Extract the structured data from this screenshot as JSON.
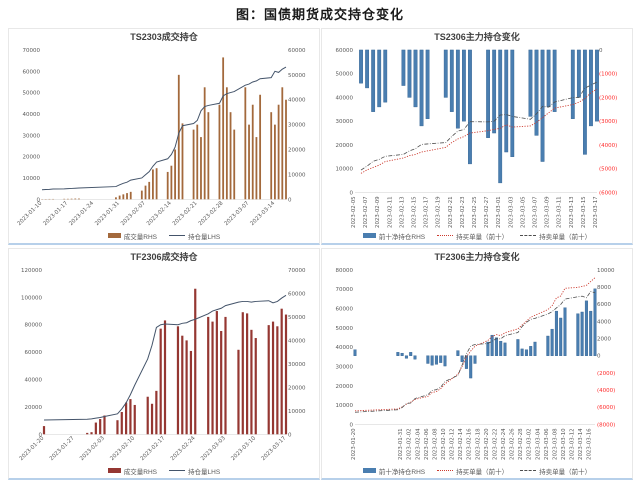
{
  "page_title": "图：国债期货成交持仓变化",
  "colors": {
    "oi_line": "#44546A",
    "ts_volume_bar": "#A3693C",
    "tf_volume_bar": "#953732",
    "net_position_bar": "#4A7EB0",
    "net_position_bar_border": "#2F5F8F",
    "buy_line": "#CC3A2E",
    "sell_line": "#4D4D4D",
    "negative_tick": "#FF2A2A",
    "panel_border_bottom": "#B7D0EA"
  },
  "chart_data": [
    {
      "type": "bar",
      "title": "TS2303成交持仓",
      "x_range": [
        "2023-01-10",
        "2023-03-17"
      ],
      "left_axis": {
        "min": 0,
        "max": 70000,
        "step": 10000
      },
      "right_axis": {
        "min": 0,
        "max": 60000,
        "step": 10000
      },
      "x_tick_labels": [
        "2023-01-10",
        "2023-01-17",
        "2023-01-24",
        "2023-01-31",
        "2023-02-07",
        "2023-02-14",
        "2023-02-21",
        "2023-02-28",
        "2023-03-07",
        "2023-03-14"
      ],
      "dates": [
        "2023-01-10",
        "2023-01-11",
        "2023-01-12",
        "2023-01-13",
        "2023-01-16",
        "2023-01-17",
        "2023-01-18",
        "2023-01-19",
        "2023-01-20",
        "2023-01-30",
        "2023-01-31",
        "2023-02-01",
        "2023-02-02",
        "2023-02-03",
        "2023-02-06",
        "2023-02-07",
        "2023-02-08",
        "2023-02-09",
        "2023-02-10",
        "2023-02-13",
        "2023-02-14",
        "2023-02-15",
        "2023-02-16",
        "2023-02-17",
        "2023-02-20",
        "2023-02-21",
        "2023-02-22",
        "2023-02-23",
        "2023-02-24",
        "2023-02-27",
        "2023-02-28",
        "2023-03-01",
        "2023-03-02",
        "2023-03-03",
        "2023-03-06",
        "2023-03-07",
        "2023-03-08",
        "2023-03-09",
        "2023-03-10",
        "2023-03-13",
        "2023-03-14",
        "2023-03-15",
        "2023-03-16",
        "2023-03-17"
      ],
      "series": [
        {
          "name": "成交量RHS",
          "kind": "bar",
          "axis": "right",
          "values": [
            100,
            100,
            150,
            150,
            200,
            200,
            250,
            300,
            300,
            800,
            1500,
            2000,
            2500,
            3000,
            3500,
            5500,
            7000,
            12000,
            12500,
            11000,
            13500,
            20000,
            50000,
            30500,
            28000,
            30000,
            25000,
            45000,
            35000,
            38000,
            57000,
            45000,
            35000,
            28000,
            45000,
            30000,
            38000,
            25000,
            42000,
            35000,
            30000,
            38000,
            45000,
            40000
          ]
        },
        {
          "name": "持仓量LHS",
          "kind": "line",
          "axis": "left",
          "values": [
            4500,
            4600,
            4700,
            4800,
            4900,
            5000,
            5100,
            5200,
            5300,
            6000,
            6800,
            7500,
            8000,
            9000,
            10000,
            11500,
            13000,
            15500,
            17500,
            19000,
            21000,
            24500,
            31000,
            34500,
            35500,
            37000,
            41500,
            43500,
            44000,
            45000,
            48500,
            49500,
            50000,
            50500,
            53500,
            54000,
            55000,
            55500,
            56500,
            57000,
            60000,
            59500,
            61000,
            62000
          ]
        }
      ],
      "legend": [
        {
          "label": "成交量RHS",
          "marker": "bar",
          "color": "#A3693C"
        },
        {
          "label": "持仓量LHS",
          "marker": "line",
          "color": "#44546A"
        }
      ]
    },
    {
      "type": "bar",
      "title": "TS2306主力持仓变化",
      "x_range": [
        "2023-02-05",
        "2023-03-17"
      ],
      "left_axis": {
        "min": 0,
        "max": 60000,
        "step": 10000
      },
      "right_axis": {
        "min": -6000,
        "max": 0,
        "step": 1000
      },
      "x_tick_labels": [
        "2023-02-05",
        "2023-02-07",
        "2023-02-09",
        "2023-02-11",
        "2023-02-13",
        "2023-02-15",
        "2023-02-17",
        "2023-02-19",
        "2023-02-21",
        "2023-02-23",
        "2023-02-25",
        "2023-02-27",
        "2023-03-01",
        "2023-03-03",
        "2023-03-05",
        "2023-03-07",
        "2023-03-09",
        "2023-03-11",
        "2023-03-13",
        "2023-03-15",
        "2023-03-17"
      ],
      "dates": [
        "2023-02-06",
        "2023-02-07",
        "2023-02-08",
        "2023-02-09",
        "2023-02-10",
        "2023-02-13",
        "2023-02-14",
        "2023-02-15",
        "2023-02-16",
        "2023-02-17",
        "2023-02-20",
        "2023-02-21",
        "2023-02-22",
        "2023-02-23",
        "2023-02-24",
        "2023-02-27",
        "2023-02-28",
        "2023-03-01",
        "2023-03-02",
        "2023-03-03",
        "2023-03-06",
        "2023-03-07",
        "2023-03-08",
        "2023-03-09",
        "2023-03-10",
        "2023-03-13",
        "2023-03-14",
        "2023-03-15",
        "2023-03-16",
        "2023-03-17"
      ],
      "series": [
        {
          "name": "前十净持仓RHS",
          "kind": "bar",
          "axis": "right",
          "values": [
            -1400,
            -1600,
            -2600,
            -2400,
            -2200,
            -1500,
            -2000,
            -2400,
            -3200,
            -2900,
            -2000,
            -2600,
            -3300,
            -3000,
            -4800,
            -3700,
            -3500,
            -5600,
            -4300,
            -4500,
            -2800,
            -3600,
            -4700,
            -2400,
            -2600,
            -2900,
            -2000,
            -4400,
            -3200,
            -3000
          ]
        },
        {
          "name": "持买单量（前十）",
          "kind": "dotted-line",
          "axis": "left",
          "values": [
            8000,
            9500,
            10500,
            11500,
            13000,
            14500,
            15500,
            16000,
            17000,
            17500,
            19000,
            21000,
            22500,
            23500,
            25000,
            26000,
            26500,
            27000,
            28500,
            27500,
            28000,
            29500,
            31500,
            33500,
            35500,
            37000,
            38000,
            39500,
            42000,
            43500
          ]
        },
        {
          "name": "持卖单量（前十）",
          "kind": "dashdot-line",
          "axis": "left",
          "values": [
            9400,
            11100,
            13100,
            13900,
            15200,
            16000,
            17500,
            18400,
            20200,
            20400,
            21000,
            23600,
            25800,
            26500,
            29800,
            29700,
            30000,
            32600,
            32800,
            32000,
            30800,
            33100,
            36200,
            35900,
            38100,
            39900,
            40000,
            43900,
            45200,
            46500
          ]
        }
      ],
      "legend": [
        {
          "label": "前十净持仓RHS",
          "marker": "bar",
          "color": "#4A7EB0"
        },
        {
          "label": "持买单量（前十）",
          "marker": "dotted",
          "color": "#CC3A2E"
        },
        {
          "label": "持卖单量（前十）",
          "marker": "dashdot",
          "color": "#4D4D4D"
        }
      ]
    },
    {
      "type": "bar",
      "title": "TF2306成交持仓",
      "x_range": [
        "2023-01-20",
        "2023-03-17"
      ],
      "left_axis": {
        "min": 0,
        "max": 120000,
        "step": 20000
      },
      "right_axis": {
        "min": 0,
        "max": 70000,
        "step": 10000
      },
      "x_tick_labels": [
        "2023-01-20",
        "2023-01-27",
        "2023-02-03",
        "2023-02-10",
        "2023-02-17",
        "2023-02-24",
        "2023-03-03",
        "2023-03-10",
        "2023-03-17"
      ],
      "dates": [
        "2023-01-20",
        "2023-01-30",
        "2023-01-31",
        "2023-02-01",
        "2023-02-02",
        "2023-02-03",
        "2023-02-06",
        "2023-02-07",
        "2023-02-08",
        "2023-02-09",
        "2023-02-10",
        "2023-02-13",
        "2023-02-14",
        "2023-02-15",
        "2023-02-16",
        "2023-02-17",
        "2023-02-20",
        "2023-02-21",
        "2023-02-22",
        "2023-02-23",
        "2023-02-24",
        "2023-02-27",
        "2023-02-28",
        "2023-03-01",
        "2023-03-02",
        "2023-03-03",
        "2023-03-06",
        "2023-03-07",
        "2023-03-08",
        "2023-03-09",
        "2023-03-10",
        "2023-03-13",
        "2023-03-14",
        "2023-03-15",
        "2023-03-16",
        "2023-03-17"
      ],
      "series": [
        {
          "name": "成交量RHS",
          "kind": "bar",
          "axis": "right",
          "values": [
            3500,
            600,
            900,
            5000,
            6500,
            8000,
            6000,
            9500,
            13500,
            15000,
            12500,
            16000,
            13000,
            18500,
            45000,
            48500,
            46000,
            42000,
            40000,
            35500,
            62000,
            50000,
            48000,
            52500,
            44000,
            50000,
            36000,
            52000,
            51500,
            44500,
            41000,
            46500,
            48000,
            46000,
            53500,
            51000
          ]
        },
        {
          "name": "持仓量LHS",
          "kind": "line",
          "axis": "left",
          "values": [
            10500,
            11000,
            11300,
            11800,
            12300,
            13000,
            15000,
            18500,
            23000,
            29000,
            36000,
            55000,
            65000,
            78000,
            80000,
            80500,
            80000,
            81000,
            81500,
            83000,
            84000,
            88000,
            90000,
            91000,
            92000,
            94000,
            96500,
            97000,
            97000,
            96500,
            97000,
            97500,
            96000,
            97000,
            99500,
            101500
          ]
        }
      ],
      "legend": [
        {
          "label": "成交量RHS",
          "marker": "bar",
          "color": "#953732"
        },
        {
          "label": "持仓量LHS",
          "marker": "line",
          "color": "#44546A"
        }
      ]
    },
    {
      "type": "bar",
      "title": "TF2306主力持仓变化",
      "x_range": [
        "2023-01-20",
        "2023-03-17"
      ],
      "left_axis": {
        "min": 0,
        "max": 80000,
        "step": 10000
      },
      "right_axis": {
        "min": -8000,
        "max": 10000,
        "step": 2000
      },
      "x_tick_labels": [
        "2023-01-20",
        "2023-01-31",
        "2023-02-02",
        "2023-02-04",
        "2023-02-06",
        "2023-02-08",
        "2023-02-10",
        "2023-02-12",
        "2023-02-14",
        "2023-02-16",
        "2023-02-18",
        "2023-02-20",
        "2023-02-22",
        "2023-02-24",
        "2023-02-26",
        "2023-02-28",
        "2023-03-02",
        "2023-03-04",
        "2023-03-06",
        "2023-03-08",
        "2023-03-10",
        "2023-03-12",
        "2023-03-14",
        "2023-03-16"
      ],
      "dates": [
        "2023-01-20",
        "2023-01-30",
        "2023-01-31",
        "2023-02-01",
        "2023-02-02",
        "2023-02-03",
        "2023-02-06",
        "2023-02-07",
        "2023-02-08",
        "2023-02-09",
        "2023-02-10",
        "2023-02-13",
        "2023-02-14",
        "2023-02-15",
        "2023-02-16",
        "2023-02-17",
        "2023-02-20",
        "2023-02-21",
        "2023-02-22",
        "2023-02-23",
        "2023-02-24",
        "2023-02-27",
        "2023-02-28",
        "2023-03-01",
        "2023-03-02",
        "2023-03-03",
        "2023-03-06",
        "2023-03-07",
        "2023-03-08",
        "2023-03-09",
        "2023-03-10",
        "2023-03-13",
        "2023-03-14",
        "2023-03-15",
        "2023-03-16",
        "2023-03-17"
      ],
      "series": [
        {
          "name": "前十净持仓RHS",
          "kind": "bar",
          "axis": "right",
          "values": [
            700,
            400,
            300,
            -300,
            400,
            -400,
            -900,
            -1100,
            -1000,
            -800,
            -1200,
            600,
            -700,
            -1500,
            -2600,
            -900,
            1600,
            2400,
            2100,
            1700,
            1500,
            1900,
            800,
            700,
            1100,
            1600,
            2300,
            3100,
            5200,
            4400,
            5600,
            4900,
            5100,
            6400,
            5200,
            7800
          ]
        },
        {
          "name": "持买单量（前十）",
          "kind": "dotted-line",
          "axis": "left",
          "values": [
            7000,
            8000,
            9000,
            10500,
            11500,
            13000,
            14500,
            16500,
            17000,
            18500,
            21000,
            26000,
            30000,
            35000,
            38000,
            40500,
            43500,
            45500,
            46500,
            46000,
            47500,
            49500,
            51500,
            53500,
            55500,
            56500,
            59500,
            61500,
            65500,
            66500,
            70500,
            71000,
            71500,
            72000,
            74000,
            76000
          ]
        },
        {
          "name": "持卖单量（前十）",
          "kind": "dashdot-line",
          "axis": "left",
          "values": [
            6300,
            7600,
            8700,
            10800,
            11100,
            13400,
            15400,
            17600,
            18000,
            19300,
            22200,
            25400,
            30700,
            36500,
            40600,
            41400,
            41900,
            43100,
            44400,
            44300,
            46000,
            47600,
            50700,
            52800,
            54400,
            54900,
            57200,
            58400,
            60300,
            62100,
            64900,
            66100,
            66400,
            65600,
            68800,
            68200
          ]
        }
      ],
      "legend": [
        {
          "label": "前十净持仓RHS",
          "marker": "bar",
          "color": "#4A7EB0"
        },
        {
          "label": "持买单量（前十）",
          "marker": "dotted",
          "color": "#CC3A2E"
        },
        {
          "label": "持卖单量（前十）",
          "marker": "dashdot",
          "color": "#4D4D4D"
        }
      ]
    }
  ]
}
